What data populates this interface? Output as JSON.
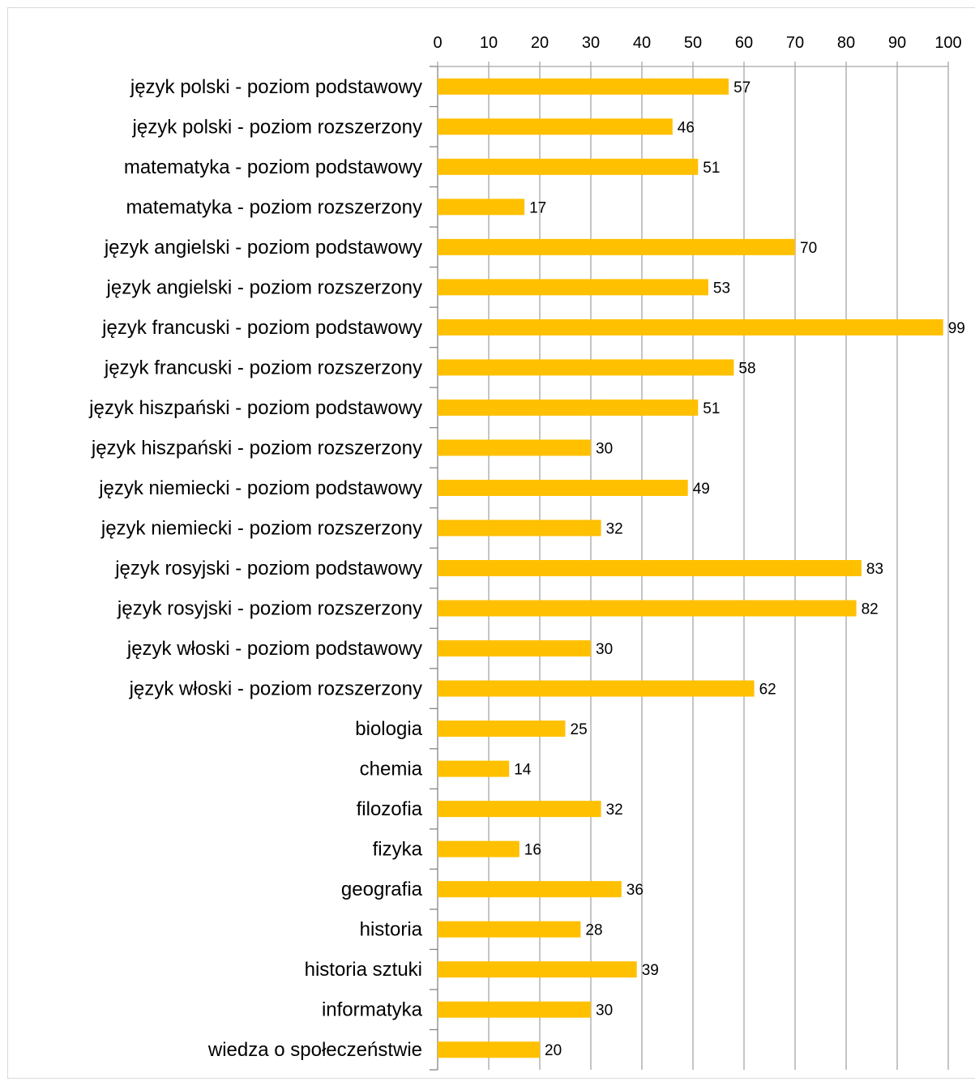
{
  "chart_data": {
    "type": "bar",
    "orientation": "horizontal",
    "title": "",
    "xlabel": "",
    "ylabel": "",
    "xlim": [
      0,
      100
    ],
    "x_ticks": [
      0,
      10,
      20,
      30,
      40,
      50,
      60,
      70,
      80,
      90,
      100
    ],
    "x_axis_position": "top",
    "grid": "vertical",
    "legend": "none",
    "bar_color": "#ffc000",
    "grid_color": "#a6a6a6",
    "categories": [
      "język polski - poziom podstawowy",
      "język polski - poziom rozszerzony",
      "matematyka - poziom podstawowy",
      "matematyka - poziom rozszerzony",
      "język angielski - poziom podstawowy",
      "język angielski - poziom rozszerzony",
      "język francuski - poziom podstawowy",
      "język francuski - poziom rozszerzony",
      "język hiszpański - poziom podstawowy",
      "język hiszpański - poziom rozszerzony",
      "język niemiecki - poziom podstawowy",
      "język niemiecki - poziom rozszerzony",
      "język rosyjski - poziom podstawowy",
      "język rosyjski - poziom rozszerzony",
      "język włoski - poziom podstawowy",
      "język włoski - poziom rozszerzony",
      "biologia",
      "chemia",
      "filozofia",
      "fizyka",
      "geografia",
      "historia",
      "historia sztuki",
      "informatyka",
      "wiedza o społeczeństwie"
    ],
    "values": [
      57,
      46,
      51,
      17,
      70,
      53,
      99,
      58,
      51,
      30,
      49,
      32,
      83,
      82,
      30,
      62,
      25,
      14,
      32,
      16,
      36,
      28,
      39,
      30,
      20
    ],
    "data_labels": [
      "57",
      "46",
      "51",
      "17",
      "70",
      "53",
      "99",
      "58",
      "51",
      "30",
      "49",
      "32",
      "83",
      "82",
      "30",
      "62",
      "25",
      "14",
      "32",
      "16",
      "36",
      "28",
      "39",
      "30",
      "20"
    ]
  }
}
